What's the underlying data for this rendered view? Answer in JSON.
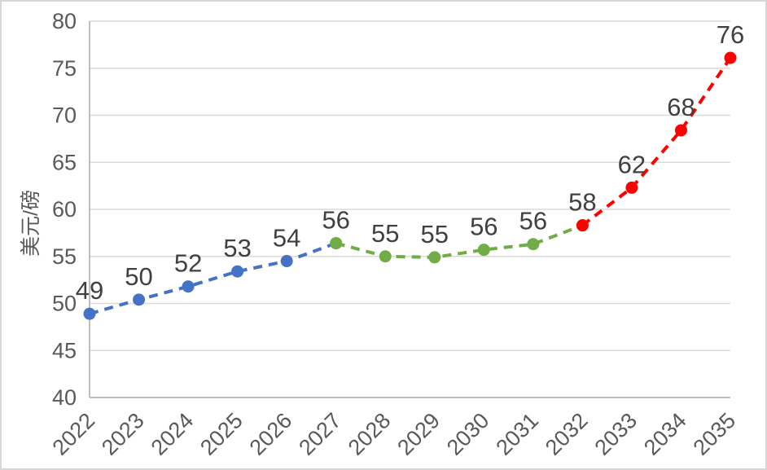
{
  "chart_data": {
    "type": "line",
    "title": "",
    "xlabel": "",
    "ylabel": "美元/磅",
    "categories": [
      "2022",
      "2023",
      "2024",
      "2025",
      "2026",
      "2027",
      "2028",
      "2029",
      "2030",
      "2031",
      "2032",
      "2033",
      "2034",
      "2035"
    ],
    "series": [
      {
        "name": "segment-blue",
        "color": "#4472C4",
        "start_index": 0,
        "values": [
          48.9,
          50.4,
          51.8,
          53.4,
          54.5,
          56.4
        ]
      },
      {
        "name": "segment-green",
        "color": "#70AD47",
        "start_index": 5,
        "values": [
          56.4,
          55.0,
          54.9,
          55.7,
          56.3,
          58.3
        ]
      },
      {
        "name": "segment-red",
        "color": "#FF0000",
        "start_index": 10,
        "values": [
          58.3,
          62.3,
          68.4,
          76.1
        ]
      }
    ],
    "data_labels": [
      "49",
      "50",
      "52",
      "53",
      "54",
      "56",
      "55",
      "55",
      "56",
      "56",
      "58",
      "62",
      "68",
      "76"
    ],
    "ylim": [
      40,
      80
    ],
    "yticks": [
      40,
      45,
      50,
      55,
      60,
      65,
      70,
      75,
      80
    ],
    "x_tick_rotation": -45,
    "grid": true,
    "legend": "none",
    "line_style": "dashed",
    "marker": "circle"
  },
  "style": {
    "grid_color": "#D9D9D9",
    "axis_color": "#BFBFBF",
    "tick_text_color": "#595959",
    "data_label_color": "#404040",
    "background": "#FFFFFF",
    "border_color": "#D6D6D6"
  }
}
